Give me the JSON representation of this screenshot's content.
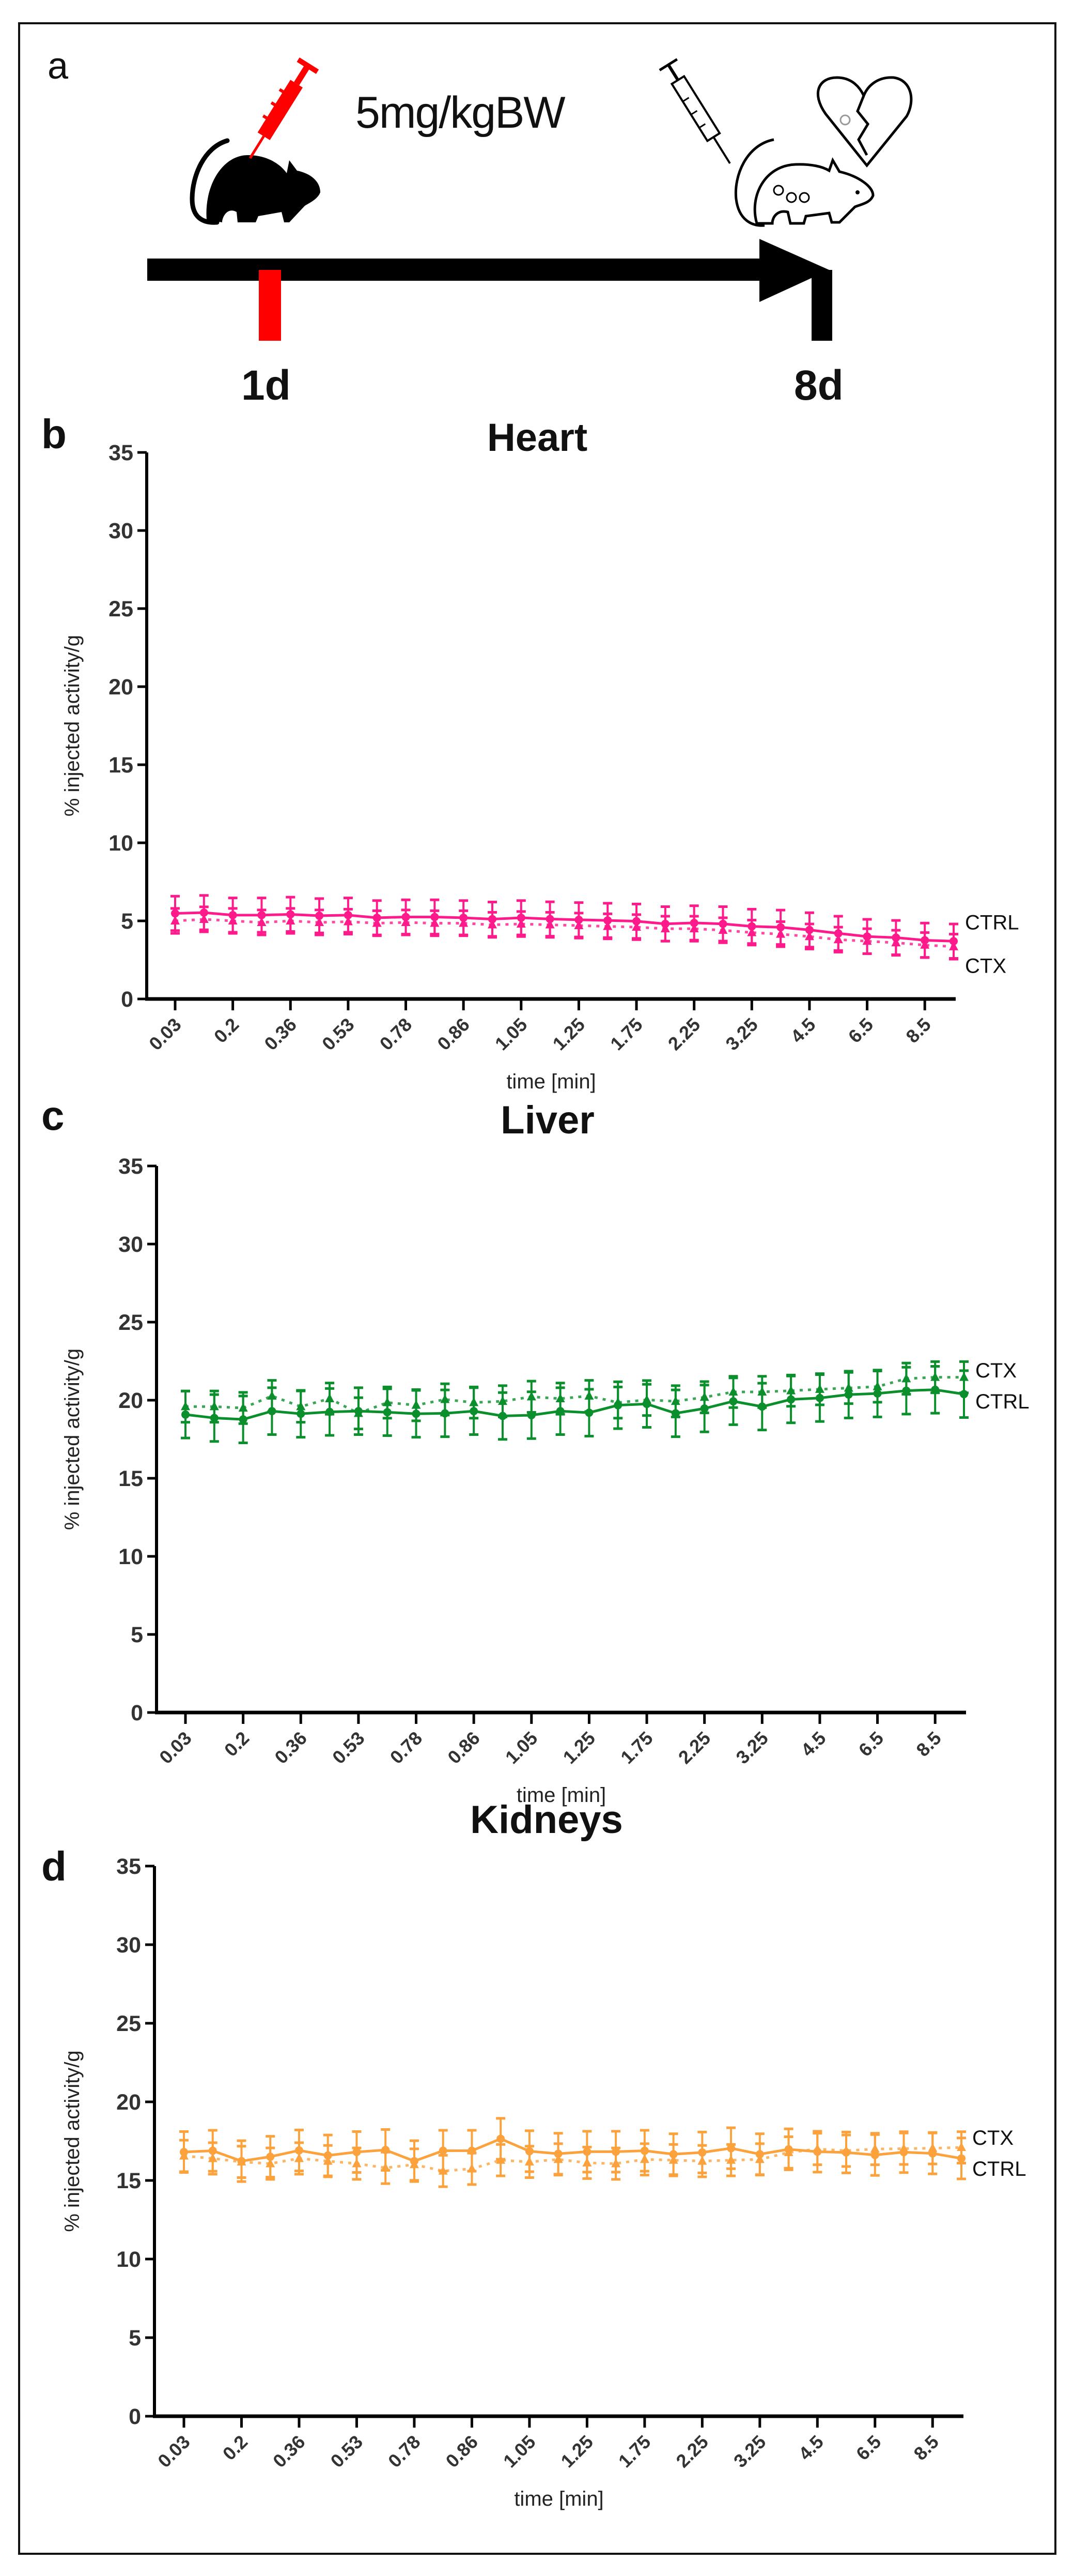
{
  "panel_a": {
    "label": "a",
    "dose_text": "5mg/kgBW",
    "day_start": "1d",
    "day_end": "8d",
    "colors": {
      "injection": "#ff0000",
      "timeline": "#000000"
    }
  },
  "chart_data": [
    {
      "panel_label": "b",
      "type": "line",
      "title": "Heart",
      "xlabel": "time [min]",
      "ylabel": "% injected activity/g",
      "ylim": [
        0,
        35
      ],
      "yticks": [
        0,
        5,
        10,
        15,
        20,
        25,
        30,
        35
      ],
      "x_tick_labels": [
        "0.03",
        "0.2",
        "0.36",
        "0.53",
        "0.78",
        "0.86",
        "1.05",
        "1.25",
        "1.75",
        "2.25",
        "3.25",
        "4.5",
        "6.5",
        "8.5"
      ],
      "grid": false,
      "legend_placement": "right-end-labels",
      "color": "#ff1a8c",
      "series": [
        {
          "name": "CTRL",
          "style": "solid",
          "marker": "circle",
          "error": 1.1,
          "values": [
            5.48,
            5.53,
            5.37,
            5.37,
            5.42,
            5.33,
            5.37,
            5.2,
            5.25,
            5.25,
            5.2,
            5.11,
            5.2,
            5.12,
            5.07,
            5.03,
            4.98,
            4.81,
            4.87,
            4.81,
            4.65,
            4.59,
            4.42,
            4.2,
            4.0,
            3.93,
            3.76,
            3.7
          ]
        },
        {
          "name": "CTX",
          "style": "dotted",
          "marker": "triangle",
          "error": 0.8,
          "values": [
            5.0,
            5.1,
            5.0,
            4.9,
            5.0,
            4.9,
            4.95,
            4.85,
            4.9,
            4.85,
            4.85,
            4.75,
            4.8,
            4.75,
            4.7,
            4.65,
            4.6,
            4.5,
            4.5,
            4.4,
            4.25,
            4.15,
            4.0,
            3.8,
            3.7,
            3.6,
            3.45,
            3.35
          ]
        }
      ]
    },
    {
      "panel_label": "c",
      "type": "line",
      "title": "Liver",
      "xlabel": "time [min]",
      "ylabel": "% injected activity/g",
      "ylim": [
        0,
        35
      ],
      "yticks": [
        0,
        5,
        10,
        15,
        20,
        25,
        30,
        35
      ],
      "x_tick_labels": [
        "0.03",
        "0.2",
        "0.36",
        "0.53",
        "0.78",
        "0.86",
        "1.05",
        "1.25",
        "1.75",
        "2.25",
        "3.25",
        "4.5",
        "6.5",
        "8.5"
      ],
      "grid": false,
      "legend_placement": "right-end-labels",
      "color": "#0a8f2c",
      "series": [
        {
          "name": "CTRL",
          "style": "solid",
          "marker": "circle",
          "error": 1.5,
          "values": [
            19.08,
            18.86,
            18.77,
            19.3,
            19.13,
            19.25,
            19.3,
            19.23,
            19.13,
            19.16,
            19.3,
            18.99,
            19.04,
            19.3,
            19.2,
            19.68,
            19.76,
            19.16,
            19.47,
            19.93,
            19.59,
            20.05,
            20.14,
            20.36,
            20.43,
            20.61,
            20.67,
            20.39
          ]
        },
        {
          "name": "CTX",
          "style": "dotted",
          "marker": "triangle",
          "error": 1.0,
          "values": [
            19.59,
            19.59,
            19.5,
            20.27,
            19.59,
            20.1,
            19.16,
            19.85,
            19.68,
            20.05,
            19.85,
            19.93,
            20.22,
            20.1,
            20.27,
            19.85,
            20.02,
            19.93,
            20.19,
            20.53,
            20.53,
            20.61,
            20.7,
            20.78,
            20.87,
            21.38,
            21.47,
            21.47
          ]
        }
      ]
    },
    {
      "panel_label": "d",
      "type": "line",
      "title": "Kidneys",
      "xlabel": "time [min]",
      "ylabel": "% injected activity/g",
      "ylim": [
        0,
        35
      ],
      "yticks": [
        0,
        5,
        10,
        15,
        20,
        25,
        30,
        35
      ],
      "x_tick_labels": [
        "0.03",
        "0.2",
        "0.36",
        "0.53",
        "0.78",
        "0.86",
        "1.05",
        "1.25",
        "1.75",
        "2.25",
        "3.25",
        "4.5",
        "6.5",
        "8.5"
      ],
      "grid": false,
      "legend_placement": "right-end-labels",
      "color": "#fba23c",
      "series": [
        {
          "name": "CTRL",
          "style": "solid",
          "marker": "circle",
          "error": 1.3,
          "values": [
            16.81,
            16.89,
            16.23,
            16.51,
            16.91,
            16.59,
            16.81,
            16.94,
            16.23,
            16.89,
            16.89,
            17.65,
            16.86,
            16.7,
            16.83,
            16.83,
            16.89,
            16.67,
            16.78,
            17.05,
            16.67,
            16.98,
            16.83,
            16.78,
            16.62,
            16.8,
            16.72,
            16.4
          ]
        },
        {
          "name": "CTX",
          "style": "dotted",
          "marker": "triangle",
          "error": 1.0,
          "values": [
            16.56,
            16.4,
            16.18,
            16.07,
            16.4,
            16.23,
            16.07,
            15.8,
            16.01,
            15.6,
            15.74,
            16.29,
            16.18,
            16.34,
            16.12,
            16.07,
            16.34,
            16.29,
            16.23,
            16.29,
            16.34,
            16.78,
            17.0,
            16.89,
            17.0,
            17.02,
            17.05,
            17.1
          ]
        }
      ]
    }
  ]
}
